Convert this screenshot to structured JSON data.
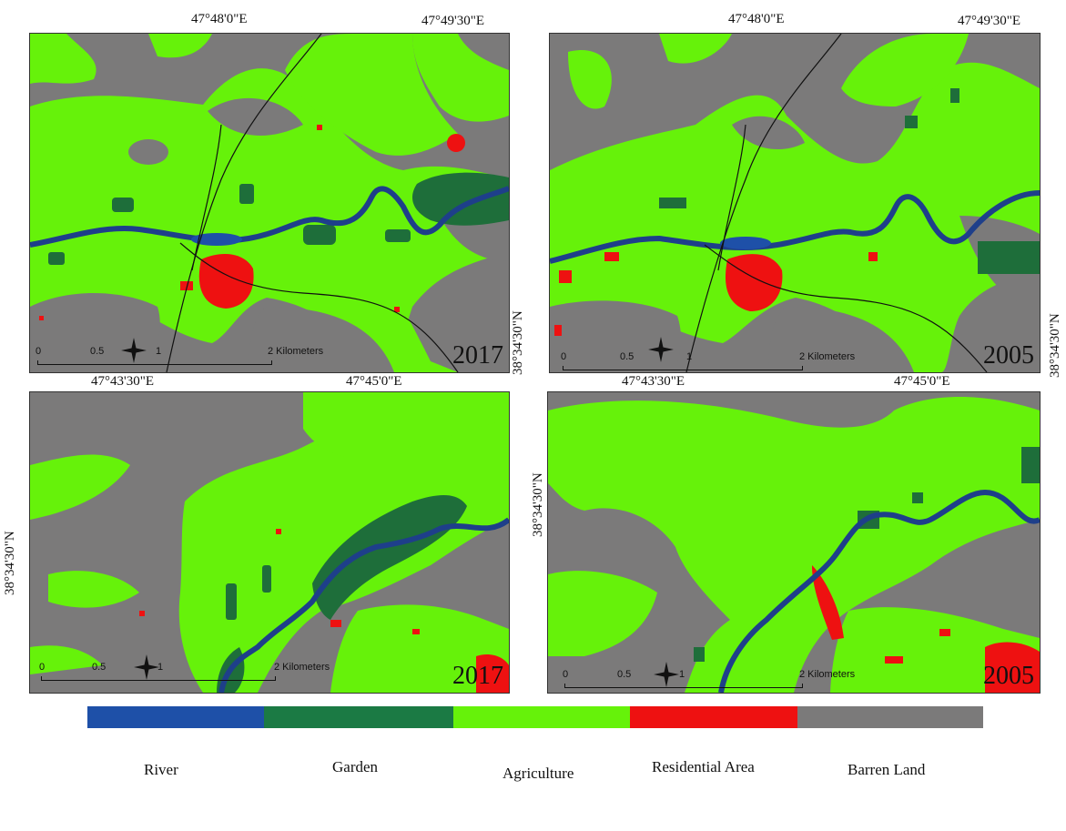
{
  "colors": {
    "river": "#1e3f8a",
    "garden": "#1e6e3a",
    "agriculture": "#66f20a",
    "residential": "#ee1111",
    "barren": "#7b7a7a"
  },
  "top_coords": {
    "x1": "47°48'0\"E",
    "x2": "47°49'30\"E",
    "y1": "38°34'30\"N"
  },
  "bottom_coords": {
    "x1": "47°43'30\"E",
    "x2": "47°45'0\"E",
    "y1": "38°34'30\"N"
  },
  "panels": [
    {
      "year": "2017"
    },
    {
      "year": "2005"
    },
    {
      "year": "2017"
    },
    {
      "year": "2005"
    }
  ],
  "scale": {
    "t0": "0",
    "t1": "0.5",
    "t2": "1",
    "t3": "2 Kilometers"
  },
  "north_label": "N",
  "legend": [
    {
      "label": "River",
      "color": "#1e50a8"
    },
    {
      "label": "Garden",
      "color": "#1b7a44"
    },
    {
      "label": "Agriculture",
      "color": "#66f20a"
    },
    {
      "label": "Residential Area",
      "color": "#ee1111"
    },
    {
      "label": "Barren Land",
      "color": "#7b7a7a"
    }
  ]
}
